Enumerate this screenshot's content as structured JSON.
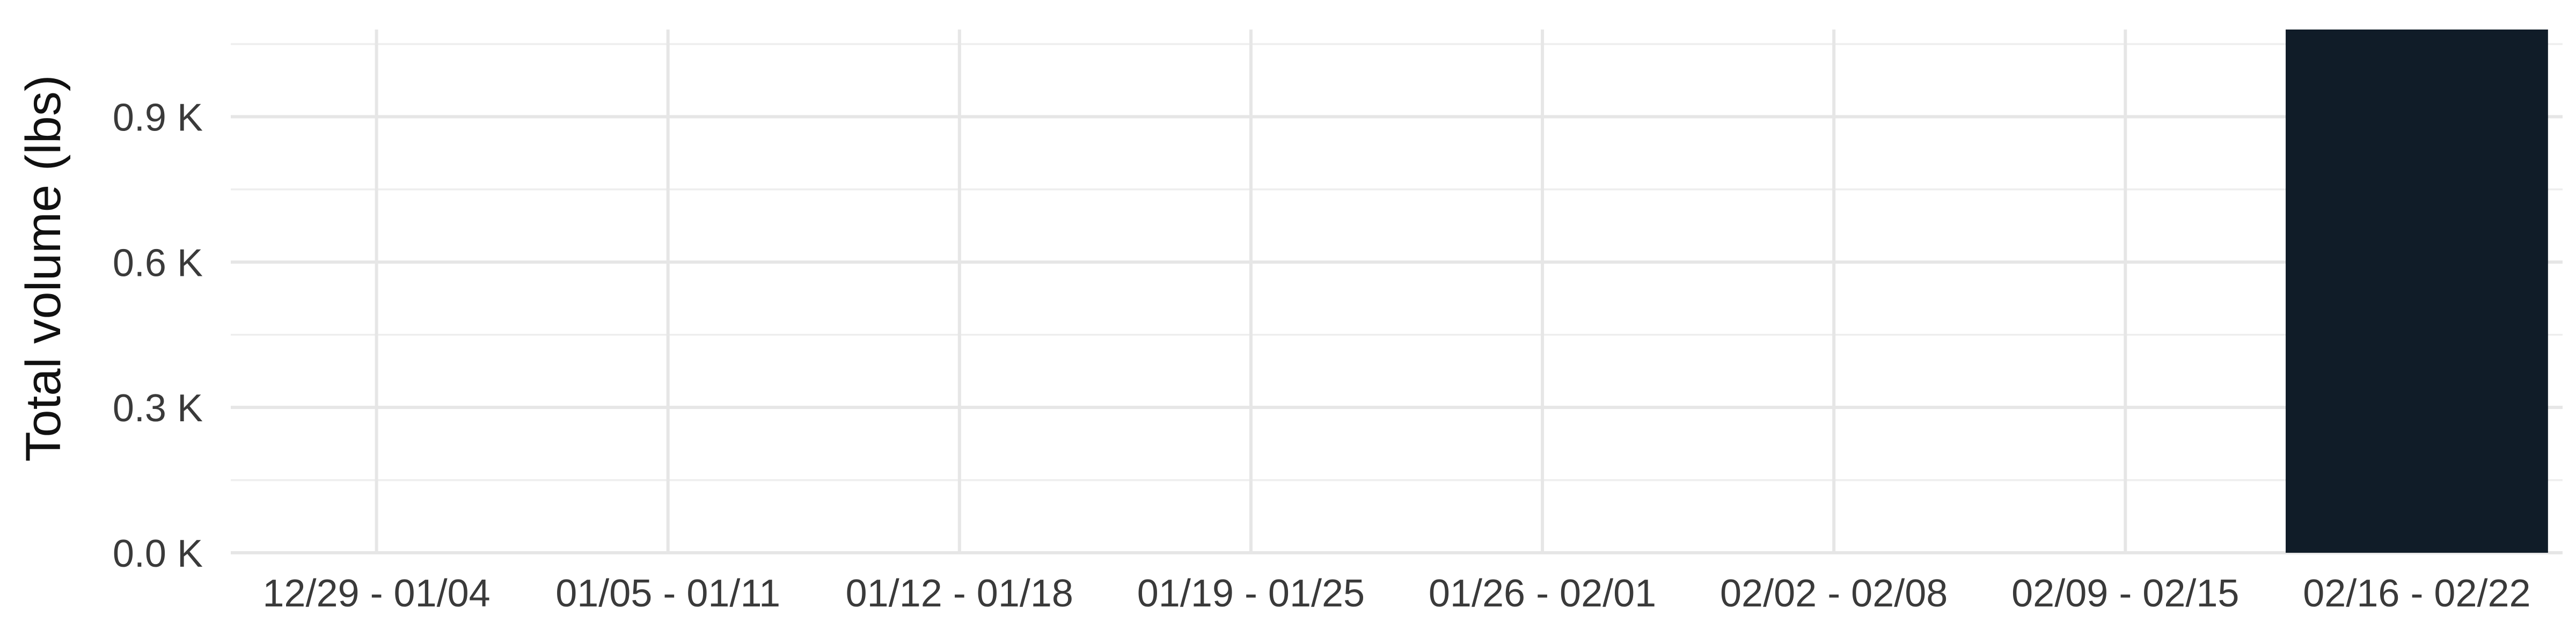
{
  "chart_data": {
    "type": "bar",
    "title": "",
    "xlabel": "",
    "ylabel": "Total volume (lbs)",
    "categories": [
      "12/29 - 01/04",
      "01/05 - 01/11",
      "01/12 - 01/18",
      "01/19 - 01/25",
      "01/26 - 02/01",
      "02/02 - 02/08",
      "02/09 - 02/15",
      "02/16 - 02/22"
    ],
    "values": [
      0,
      0,
      0,
      0,
      0,
      0,
      0,
      1080
    ],
    "yticks": [
      0,
      300,
      600,
      900
    ],
    "ytick_labels": [
      "0.0 K",
      "0.3 K",
      "0.6 K",
      "0.9 K"
    ],
    "ylim": [
      0,
      1080
    ],
    "grid": true,
    "legend": "none",
    "bar_color": "#101c28"
  }
}
